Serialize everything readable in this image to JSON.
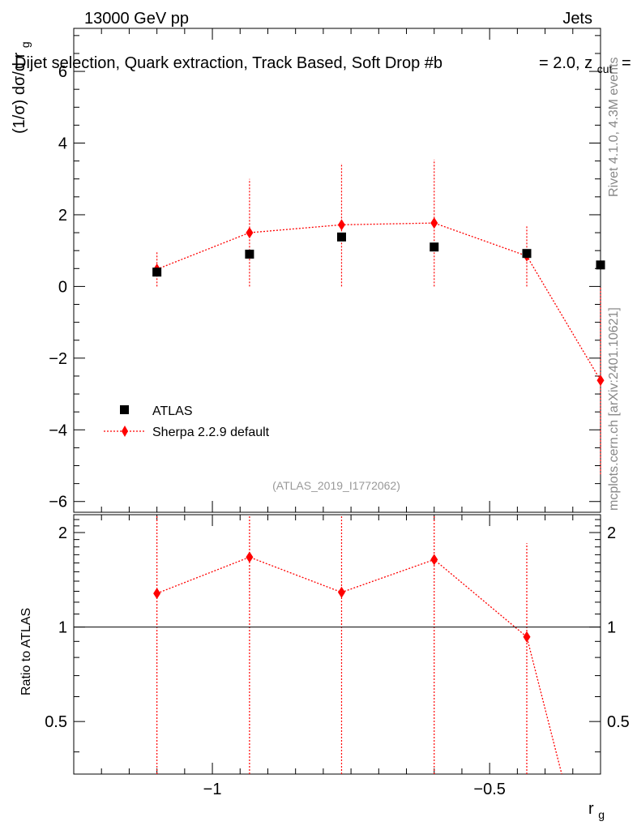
{
  "header": {
    "left": "13000 GeV pp",
    "right": "Jets",
    "title": "Dijet selection, Quark extraction, Track Based, Soft Drop #b",
    "title_tail": "= 2.0, z",
    "title_tail_sub": "cut",
    "title_tail_end": "="
  },
  "side": {
    "rivet": "Rivet 4.1.0,  4.3M events",
    "mcplots": "mcplots.cern.ch [arXiv:2401.10621]"
  },
  "watermark": "(ATLAS_2019_I1772062)",
  "colors": {
    "mc": "#ff0000",
    "data": "#000000"
  },
  "chart_data": [
    {
      "type": "scatter",
      "ylabel": "(1/σ) dσ/d r",
      "ylabel_sub": "g",
      "xlim": [
        -1.25,
        -0.3
      ],
      "ylim": [
        -6.3,
        7.2
      ],
      "yticks": [
        -6,
        -4,
        -2,
        0,
        2,
        4,
        6
      ],
      "ytick_labels": [
        "−6",
        "−4",
        "−2",
        "0",
        "2",
        "4",
        "6"
      ],
      "legend_position": "lower-left",
      "series": [
        {
          "name": "ATLAS",
          "marker": "square",
          "x": [
            -1.1,
            -0.933,
            -0.767,
            -0.6,
            -0.433,
            -0.3
          ],
          "y": [
            0.4,
            0.9,
            1.38,
            1.1,
            0.92,
            0.6
          ]
        },
        {
          "name": "Sherpa 2.2.9 default",
          "marker": "diamond",
          "line": "dotted",
          "x": [
            -1.1,
            -0.933,
            -0.767,
            -0.6,
            -0.433,
            -0.3
          ],
          "y": [
            0.48,
            1.5,
            1.72,
            1.77,
            0.85,
            -2.62
          ],
          "yerr_low": [
            0.48,
            1.5,
            1.72,
            1.77,
            0.85,
            2.62
          ],
          "yerr_high": [
            0.48,
            1.5,
            1.72,
            1.77,
            0.85,
            2.62
          ]
        }
      ]
    },
    {
      "type": "scatter",
      "ylabel": "Ratio to ATLAS",
      "xlabel": "r",
      "xlabel_sub": "g",
      "xlim": [
        -1.25,
        -0.3
      ],
      "ylim": [
        0.34,
        2.28
      ],
      "scale": "log",
      "yticks": [
        0.5,
        1,
        2
      ],
      "ytick_labels": [
        "0.5",
        "1",
        "2"
      ],
      "xticks": [
        -1,
        -0.5
      ],
      "xtick_labels": [
        "−1",
        "−0.5"
      ],
      "reference_line": 1,
      "series": [
        {
          "name": "Sherpa 2.2.9 default",
          "x": [
            -1.1,
            -0.933,
            -0.767,
            -0.6,
            -0.433,
            -0.37
          ],
          "y": [
            1.28,
            1.67,
            1.29,
            1.64,
            0.93,
            0.34
          ],
          "yerr_low": [
            1.28,
            1.67,
            1.29,
            1.64,
            0.93,
            0
          ],
          "yerr_high": [
            1.28,
            1.67,
            1.29,
            1.64,
            0.92,
            0
          ]
        }
      ]
    }
  ]
}
